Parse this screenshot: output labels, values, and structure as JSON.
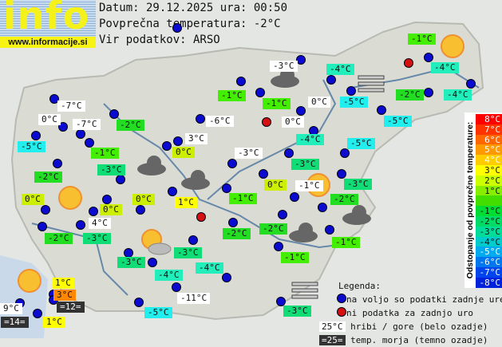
{
  "logo": {
    "text": "info",
    "url": "www.informacije.si"
  },
  "header": {
    "date_line": "Datum: 29.12.2025 ura: 00:50",
    "avg_temp_line": "Povprečna temperatura: -2°C",
    "source_line": "Vir podatkov: ARSO"
  },
  "colors": {
    "white": "#ffffff",
    "sea": "#333333",
    "t1": "#ffff00",
    "t0": "#ccee00",
    "t3": "#ff8800",
    "tm1": "#44ee00",
    "tm2": "#22dd22",
    "tm3": "#11dd77",
    "tm4": "#22eebb",
    "tm5": "#22eeee"
  },
  "stations": [
    {
      "temp": "-7°C",
      "type": "white"
    },
    {
      "temp": "0°C",
      "type": "white"
    },
    {
      "temp": "-7°C",
      "type": "white"
    },
    {
      "temp": "-2°C",
      "type": "tm2"
    },
    {
      "temp": "-5°C",
      "type": "tm5"
    },
    {
      "temp": "-1°C",
      "type": "tm1"
    },
    {
      "temp": "-3°C",
      "type": "tm3"
    },
    {
      "temp": "-1°C",
      "type": "tm1"
    },
    {
      "temp": "-6°C",
      "type": "white"
    },
    {
      "temp": "3°C",
      "type": "white"
    },
    {
      "temp": "0°C",
      "type": "t0"
    },
    {
      "temp": "-3°C",
      "type": "white"
    },
    {
      "temp": "-3°C",
      "type": "white"
    },
    {
      "temp": "-4°C",
      "type": "tm4"
    },
    {
      "temp": "-1°C",
      "type": "tm1"
    },
    {
      "temp": "0°C",
      "type": "white"
    },
    {
      "temp": "-5°C",
      "type": "tm5"
    },
    {
      "temp": "0°C",
      "type": "white"
    },
    {
      "temp": "-4°C",
      "type": "tm4"
    },
    {
      "temp": "-5°C",
      "type": "tm5"
    },
    {
      "temp": "-5°C",
      "type": "tm5"
    },
    {
      "temp": "-1°C",
      "type": "tm1"
    },
    {
      "temp": "-4°C",
      "type": "tm4"
    },
    {
      "temp": "-2°C",
      "type": "tm2"
    },
    {
      "temp": "-4°C",
      "type": "tm4"
    },
    {
      "temp": "-3°C",
      "type": "tm3"
    },
    {
      "temp": "-2°C",
      "type": "tm2"
    },
    {
      "temp": "0°C",
      "type": "t0"
    },
    {
      "temp": "0°C",
      "type": "t0"
    },
    {
      "temp": "0°C",
      "type": "t0"
    },
    {
      "temp": "1°C",
      "type": "t1"
    },
    {
      "temp": "4°C",
      "type": "white"
    },
    {
      "temp": "-2°C",
      "type": "tm2"
    },
    {
      "temp": "-3°C",
      "type": "tm3"
    },
    {
      "temp": "-1°C",
      "type": "tm1"
    },
    {
      "temp": "0°C",
      "type": "t0"
    },
    {
      "temp": "-1°C",
      "type": "white"
    },
    {
      "temp": "-3°C",
      "type": "tm3"
    },
    {
      "temp": "-2°C",
      "type": "tm2"
    },
    {
      "temp": "-2°C",
      "type": "tm2"
    },
    {
      "temp": "-2°C",
      "type": "tm2"
    },
    {
      "temp": "-3°C",
      "type": "tm3"
    },
    {
      "temp": "-1°C",
      "type": "tm1"
    },
    {
      "temp": "-1°C",
      "type": "tm1"
    },
    {
      "temp": "-3°C",
      "type": "tm3"
    },
    {
      "temp": "-4°C",
      "type": "tm4"
    },
    {
      "temp": "-4°C",
      "type": "tm4"
    },
    {
      "temp": "-11°C",
      "type": "white"
    },
    {
      "temp": "-5°C",
      "type": "tm5"
    },
    {
      "temp": "-3°C",
      "type": "tm3"
    },
    {
      "temp": "1°C",
      "type": "t1"
    },
    {
      "temp": "3°C",
      "type": "t3"
    },
    {
      "temp": "=12=",
      "type": "sea"
    },
    {
      "temp": "9°C",
      "type": "white"
    },
    {
      "temp": "=14=",
      "type": "sea"
    },
    {
      "temp": "1°C",
      "type": "t1"
    }
  ],
  "scale": {
    "title": "Odstopanje od povprečne temperature:",
    "rows": [
      {
        "label": "8°C",
        "color": "#ff0000"
      },
      {
        "label": "7°C",
        "color": "#ff3300"
      },
      {
        "label": "6°C",
        "color": "#ff6600"
      },
      {
        "label": "5°C",
        "color": "#ff9900"
      },
      {
        "label": "4°C",
        "color": "#ffcc00"
      },
      {
        "label": "3°C",
        "color": "#ffff00"
      },
      {
        "label": "2°C",
        "color": "#ccff00"
      },
      {
        "label": "1°C",
        "color": "#88ee00"
      },
      {
        "label": "",
        "color": "#44dd00"
      },
      {
        "label": "-1°C",
        "color": "#00dd33"
      },
      {
        "label": "-2°C",
        "color": "#00dd66"
      },
      {
        "label": "-3°C",
        "color": "#00dd99"
      },
      {
        "label": "-4°C",
        "color": "#00cccc"
      },
      {
        "label": "-5°C",
        "color": "#00aaee"
      },
      {
        "label": "-6°C",
        "color": "#0077ee"
      },
      {
        "label": "-7°C",
        "color": "#0044ee"
      },
      {
        "label": "-8°C",
        "color": "#0022dd"
      }
    ]
  },
  "legend": {
    "title": "Legenda:",
    "blue_dot": "na voljo so podatki zadnje ure",
    "red_dot": "ni podatka za zadnjo uro",
    "mountain_sample": "25°C",
    "mountain_text": "hribi / gore (belo ozadje)",
    "sea_sample": "=25=",
    "sea_text": "temp. morja (temno ozadje)"
  },
  "weather_icons": [
    "sun",
    "sun",
    "sun",
    "partly-cloudy",
    "sun",
    "cloud",
    "cloud",
    "cloud",
    "cloud",
    "cloud",
    "fog",
    "fog"
  ]
}
